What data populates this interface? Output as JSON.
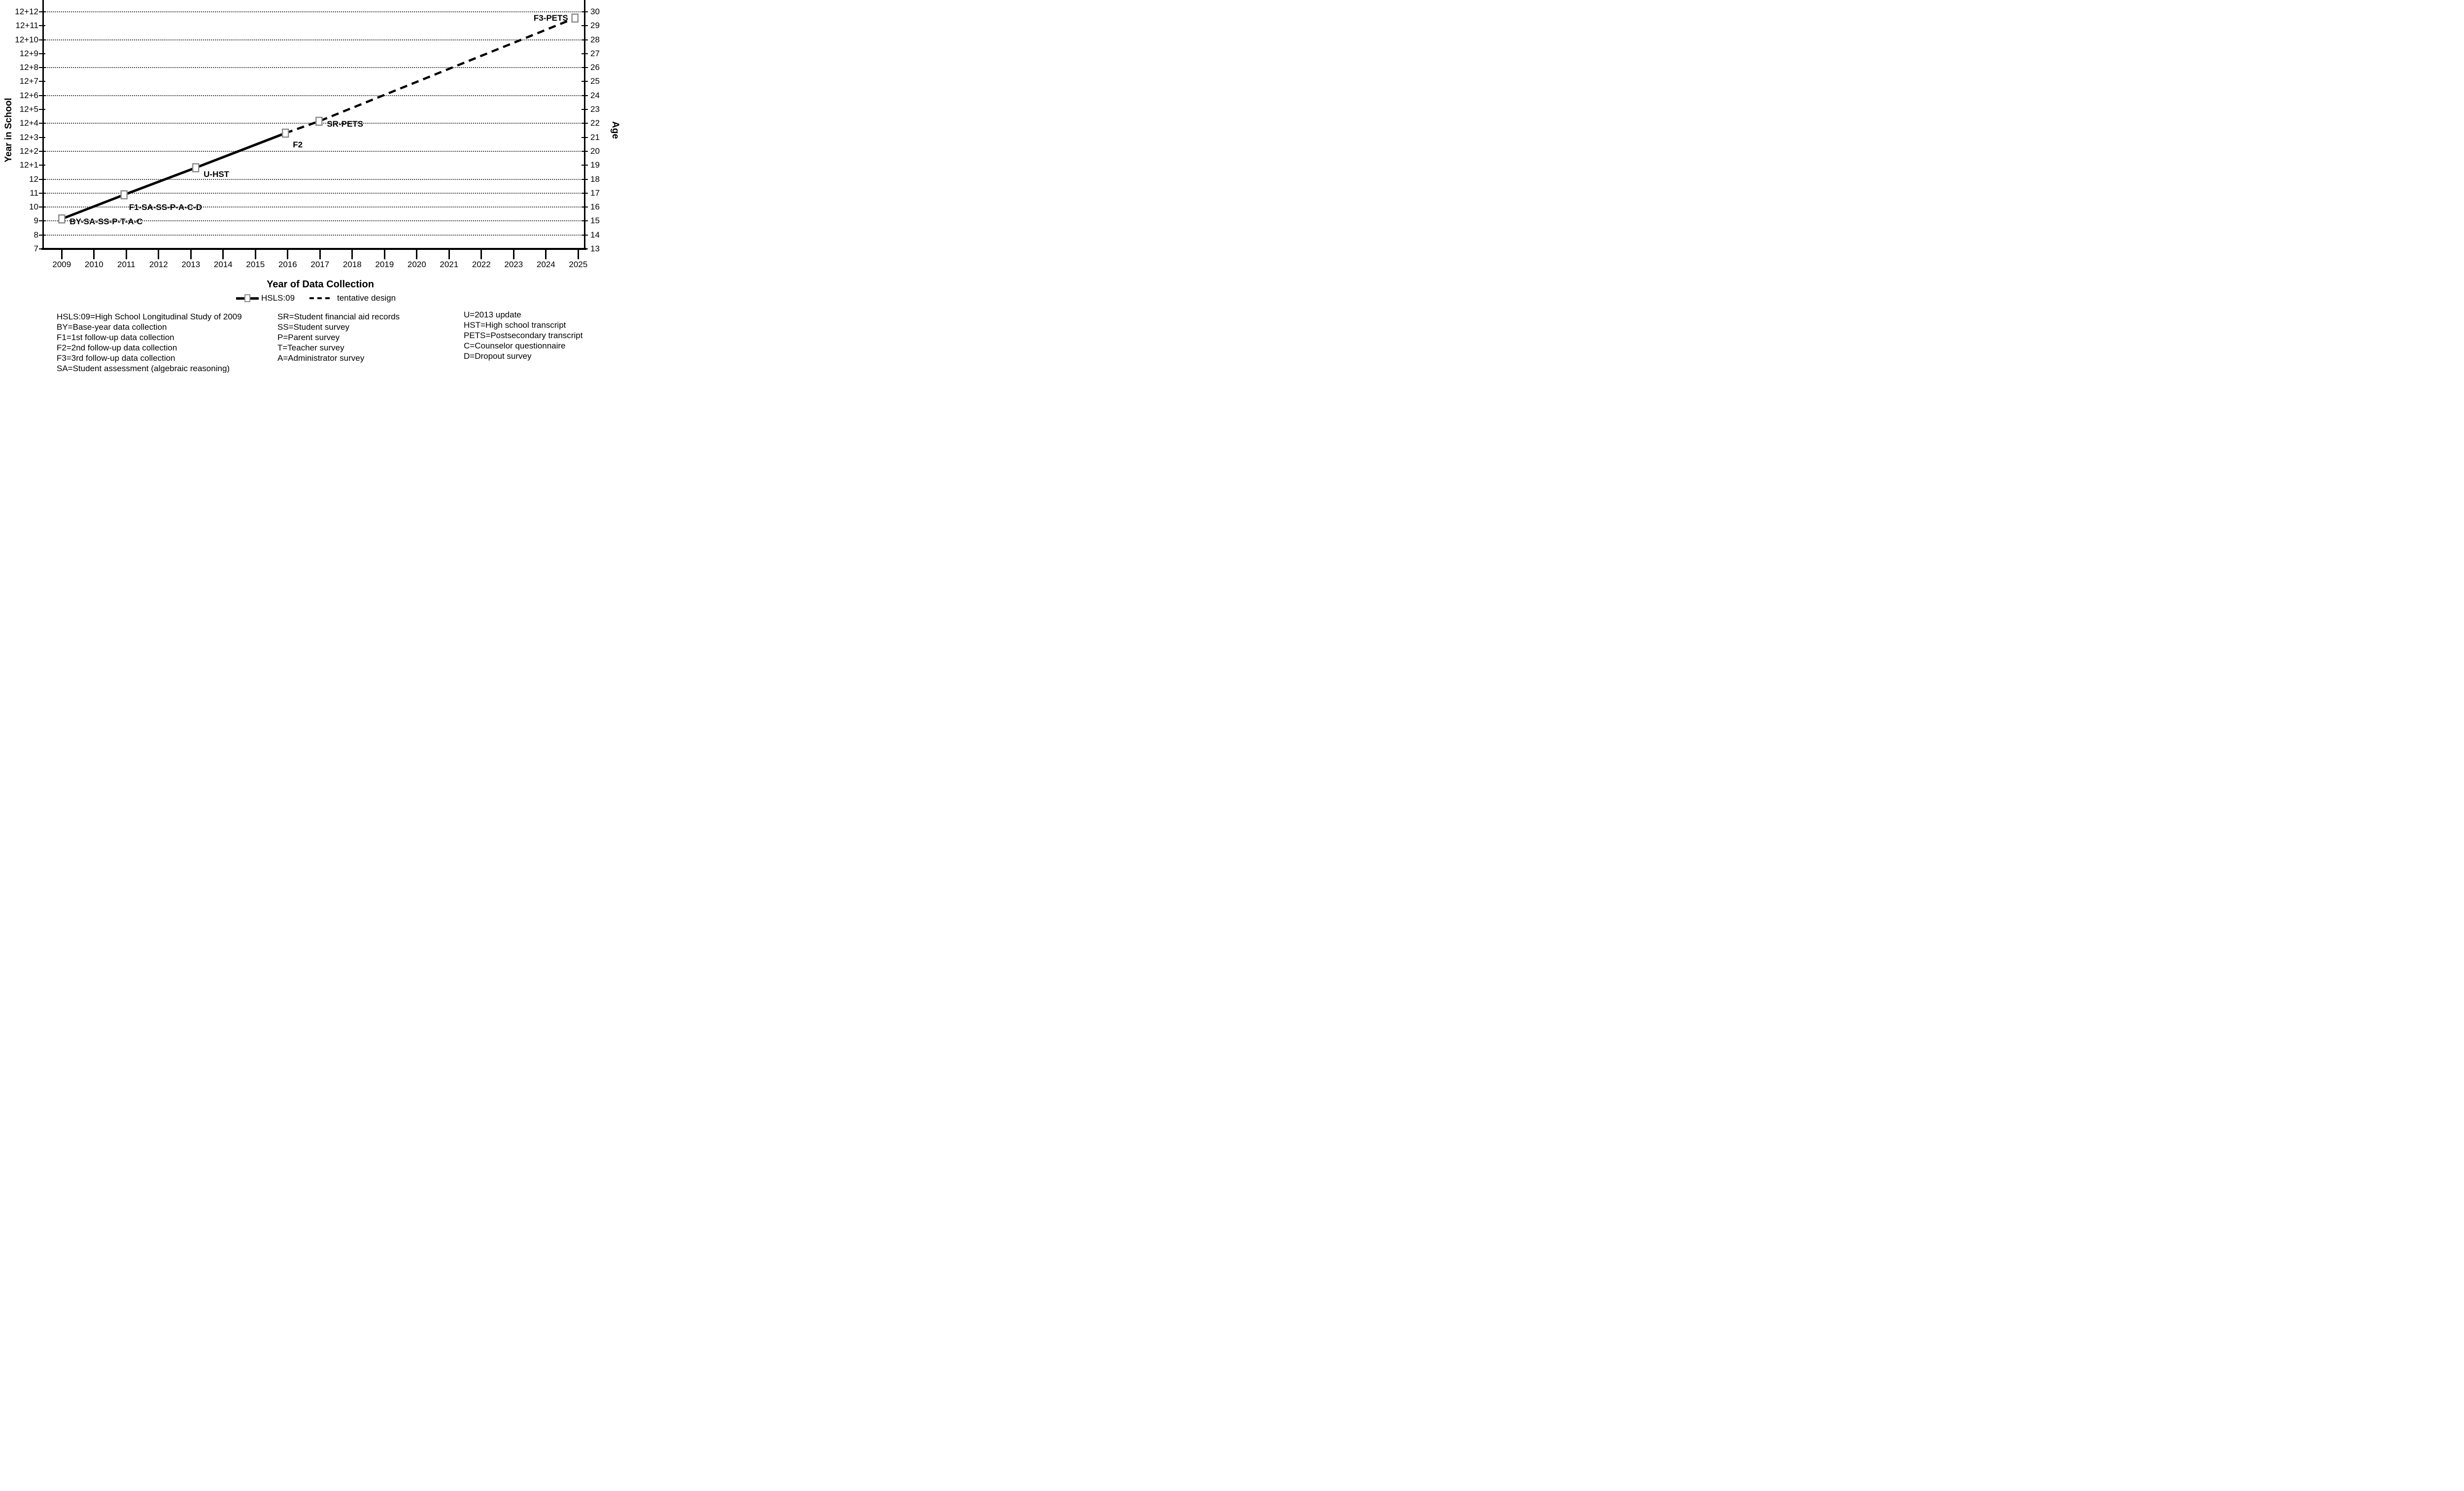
{
  "figure": {
    "x_axis_title": "Year of Data Collection",
    "y_left_axis_title": "Year in School",
    "y_right_axis_title": "Age"
  },
  "legend": {
    "series1_swatch": "solid line with open-square marker",
    "series1_label": "HSLS:09",
    "series2_swatch": "dashed line",
    "series2_label": "tentative design"
  },
  "key": {
    "col1": [
      "HSLS:09=High School Longitudinal Study of 2009",
      "BY=Base-year data collection",
      "F1=1st follow-up data collection",
      "F2=2nd follow-up data collection",
      "F3=3rd follow-up data collection",
      "SA=Student assessment (algebraic reasoning)"
    ],
    "col2": [
      "SR=Student financial aid records",
      "SS=Student survey",
      "P=Parent survey",
      "T=Teacher survey",
      "A=Administrator survey"
    ],
    "col3": [
      "U=2013 update",
      "HST=High school transcript",
      "PETS=Postsecondary transcript",
      "C=Counselor questionnaire",
      "D=Dropout survey"
    ]
  },
  "chart_data": {
    "type": "line",
    "title": "",
    "xlabel": "Year of Data Collection",
    "ylabel_left": "Year in School",
    "ylabel_right": "Age",
    "grid": "horizontal dotted",
    "legend_position": "below plot",
    "x_ticks": [
      "2009",
      "2010",
      "2011",
      "2012",
      "2013",
      "2014",
      "2015",
      "2016",
      "2017",
      "2018",
      "2019",
      "2020",
      "2021",
      "2022",
      "2023",
      "2024",
      "2025"
    ],
    "x_range": [
      2008.4,
      2025.2
    ],
    "y_left_ticks": [
      "7",
      "8",
      "9",
      "10",
      "11",
      "12",
      "12+1",
      "12+2",
      "12+3",
      "12+4",
      "12+5",
      "12+6",
      "12+7",
      "12+8",
      "12+9",
      "12+10",
      "12+11",
      "12+12"
    ],
    "y_right_ticks": [
      "13",
      "14",
      "15",
      "16",
      "17",
      "18",
      "19",
      "20",
      "21",
      "22",
      "23",
      "24",
      "25",
      "26",
      "27",
      "28",
      "29",
      "30"
    ],
    "gridline_rows": [
      1,
      2,
      3,
      4,
      5,
      7,
      9,
      11,
      13,
      15,
      17
    ],
    "series": [
      {
        "name": "HSLS:09",
        "style": "solid",
        "marker": "open-square",
        "points": [
          {
            "x": 2009.0,
            "row": 2.15,
            "y_school": "9",
            "y_age": 15.2,
            "label": "BY-SA-SS-P-T-A-C",
            "label_anchor": "start",
            "label_dx": 16,
            "label_dy": 5,
            "marker": true
          },
          {
            "x": 2010.93,
            "row": 3.88,
            "y_school": "11",
            "y_age": 16.9,
            "label": "F1-SA-SS-P-A-C-D",
            "label_anchor": "start",
            "label_dx": 10,
            "label_dy": 25,
            "marker": true
          },
          {
            "x": 2013.15,
            "row": 5.82,
            "y_school": "12+1",
            "y_age": 18.8,
            "label": "U-HST",
            "label_anchor": "start",
            "label_dx": 16,
            "label_dy": 13,
            "marker": true
          },
          {
            "x": 2015.93,
            "row": 8.3,
            "y_school": "12+3",
            "y_age": 21.3,
            "label": "F2",
            "label_anchor": "start",
            "label_dx": 15,
            "label_dy": 23,
            "marker": true
          }
        ]
      },
      {
        "name": "tentative design",
        "style": "dashed",
        "marker": "open-square",
        "points": [
          {
            "x": 2015.93,
            "row": 8.3,
            "y_school": "12+3",
            "y_age": 21.3,
            "label": "",
            "label_anchor": "start",
            "label_dx": 0,
            "label_dy": 0,
            "marker": false
          },
          {
            "x": 2016.97,
            "row": 9.15,
            "y_school": "12+4",
            "y_age": 22.2,
            "label": "SR-PETS",
            "label_anchor": "start",
            "label_dx": 16,
            "label_dy": 5,
            "marker": true
          },
          {
            "x": 2024.9,
            "row": 16.55,
            "y_school": "12+12",
            "y_age": 29.6,
            "label": "F3-PETS",
            "label_anchor": "end",
            "label_dx": -14,
            "label_dy": -1,
            "marker": true
          }
        ]
      }
    ]
  },
  "colors": {
    "background": "#ffffff",
    "text": "#000000",
    "line": "#000000",
    "grid": "#3c3c3c",
    "marker_fill": "#ffffff",
    "marker_border": "#8c8c8c"
  }
}
